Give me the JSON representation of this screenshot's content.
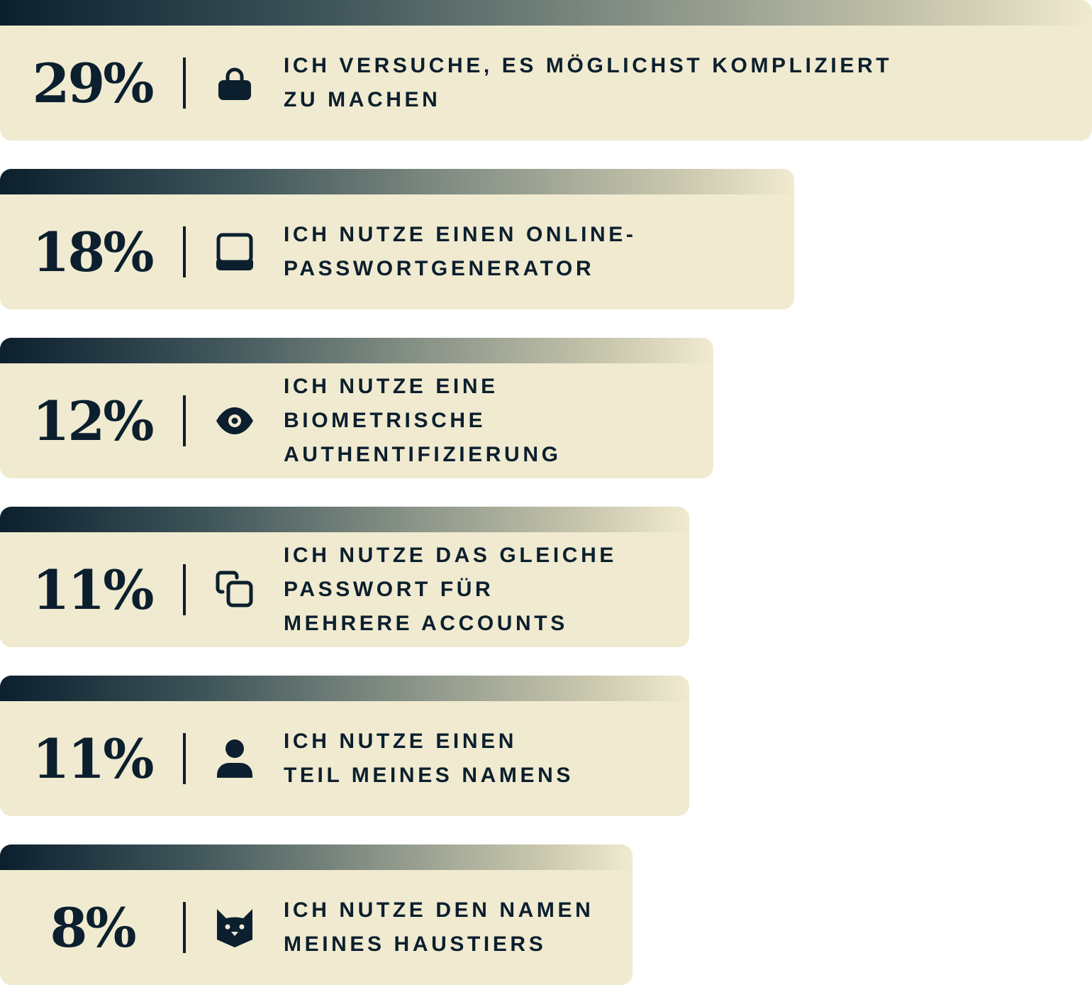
{
  "chart_data": {
    "type": "bar",
    "orientation": "horizontal",
    "unit": "%",
    "colors": {
      "dark": "#0b1f2e",
      "background": "#f0ead0"
    },
    "items": [
      {
        "value": 29,
        "label_text": "29%",
        "icon": "lock-icon",
        "lines": [
          "ICH VERSUCHE, ES MÖGLICHST KOMPLIZIERT",
          "ZU MACHEN"
        ]
      },
      {
        "value": 18,
        "label_text": "18%",
        "icon": "laptop-icon",
        "lines": [
          "ICH NUTZE EINEN ONLINE-",
          "PASSWORTGENERATOR"
        ]
      },
      {
        "value": 12,
        "label_text": "12%",
        "icon": "eye-icon",
        "lines": [
          "ICH NUTZE EINE",
          "BIOMETRISCHE",
          "AUTHENTIFIZIERUNG"
        ]
      },
      {
        "value": 11,
        "label_text": "11%",
        "icon": "copy-icon",
        "lines": [
          "ICH NUTZE DAS GLEICHE",
          "PASSWORT FÜR",
          "MEHRERE ACCOUNTS"
        ]
      },
      {
        "value": 11,
        "label_text": "11%",
        "icon": "user-icon",
        "lines": [
          "ICH NUTZE EINEN",
          "TEIL MEINES NAMENS"
        ]
      },
      {
        "value": 8,
        "label_text": "8%",
        "icon": "cat-icon",
        "lines": [
          "ICH NUTZE DEN NAMEN",
          "MEINES HAUSTIERS"
        ]
      }
    ]
  }
}
